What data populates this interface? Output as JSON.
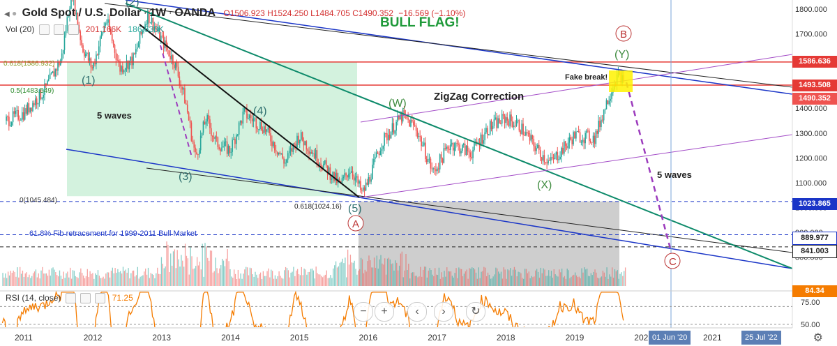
{
  "header": {
    "symbol": "Gold Spot / U.S. Dollar",
    "interval": "1W",
    "source": "OANDA",
    "open": "O1506.923",
    "high": "H1524.250",
    "low": "L1484.705",
    "close": "C1490.352",
    "change": "−16.569 (−1.10%)",
    "vol_label": "Vol (20)",
    "vol_value1": "201.166K",
    "vol_value2": "186.633K",
    "rsi_label": "RSI (14, close)",
    "rsi_value": "71.25"
  },
  "annotations": {
    "bull_flag": "BULL FLAG!",
    "zigzag": "ZigZag Correction",
    "five_waves_left": "5 waves",
    "five_waves_right": "5 waves",
    "fake_break": "Fake break!",
    "fib_note": "61.8% Fib retracement for 1999-2011 Bull Market",
    "fib_0618_top": "0.618(1586.932)",
    "fib_05": "0.5(1483.549)",
    "fib_0": "0(1045.484)",
    "fib_0618_low": "0.618(1024.16)",
    "wave_1": "(1)",
    "wave_2": "(2)",
    "wave_3": "(3)",
    "wave_4": "(4)",
    "wave_5": "(5)",
    "wave_W": "(W)",
    "wave_X": "(X)",
    "wave_Y": "(Y)",
    "wave_A": "A",
    "wave_B": "B",
    "wave_C": "C"
  },
  "price_tags": {
    "p1586": "1586.636",
    "p1493": "1493.508",
    "p1490": "1490.352",
    "p1023": "1023.865",
    "p889": "889.977",
    "p841": "841.003",
    "rsi": "84.34"
  },
  "date_tags": {
    "d1": "01 Jun '20",
    "d2": "25 Jul '22"
  },
  "colors": {
    "up": "#26a69a",
    "down": "#ef5350",
    "red_line": "#e53935",
    "blue_line": "#1a35c7",
    "green_line": "#0d8a6a",
    "purple": "#9c3bbd",
    "rsi": "#f57c00",
    "green_box": "#c8efd6",
    "gray_box": "#bdbdbd"
  },
  "chart_data": {
    "type": "candlestick",
    "y_axis_ticks": [
      "1800.000",
      "1700.000",
      "1600.000",
      "1500.000",
      "1400.000",
      "1300.000",
      "1200.000",
      "1100.000",
      "1000.000",
      "900.000",
      "800.000"
    ],
    "x_axis_ticks": [
      "2011",
      "2012",
      "2013",
      "2014",
      "2015",
      "2016",
      "2017",
      "2018",
      "2019",
      "202",
      "2021"
    ],
    "rsi_ticks": [
      "75.00",
      "50.00"
    ],
    "ylim": [
      760,
      1830
    ],
    "price_path": [
      [
        2010.75,
        1350
      ],
      [
        2011.0,
        1380
      ],
      [
        2011.3,
        1470
      ],
      [
        2011.55,
        1600
      ],
      [
        2011.7,
        1880
      ],
      [
        2011.85,
        1650
      ],
      [
        2012.0,
        1560
      ],
      [
        2012.2,
        1760
      ],
      [
        2012.4,
        1560
      ],
      [
        2012.6,
        1600
      ],
      [
        2012.8,
        1780
      ],
      [
        2013.0,
        1680
      ],
      [
        2013.2,
        1580
      ],
      [
        2013.35,
        1430
      ],
      [
        2013.5,
        1200
      ],
      [
        2013.65,
        1360
      ],
      [
        2013.8,
        1260
      ],
      [
        2014.0,
        1230
      ],
      [
        2014.2,
        1380
      ],
      [
        2014.5,
        1320
      ],
      [
        2014.8,
        1180
      ],
      [
        2015.0,
        1290
      ],
      [
        2015.3,
        1190
      ],
      [
        2015.6,
        1090
      ],
      [
        2015.75,
        1160
      ],
      [
        2015.92,
        1055
      ],
      [
        2016.0,
        1100
      ],
      [
        2016.2,
        1260
      ],
      [
        2016.5,
        1370
      ],
      [
        2016.7,
        1320
      ],
      [
        2016.95,
        1140
      ],
      [
        2017.2,
        1260
      ],
      [
        2017.5,
        1220
      ],
      [
        2017.75,
        1320
      ],
      [
        2018.0,
        1360
      ],
      [
        2018.2,
        1330
      ],
      [
        2018.5,
        1220
      ],
      [
        2018.65,
        1180
      ],
      [
        2018.85,
        1240
      ],
      [
        2019.0,
        1290
      ],
      [
        2019.3,
        1280
      ],
      [
        2019.45,
        1410
      ],
      [
        2019.6,
        1520
      ],
      [
        2019.68,
        1530
      ],
      [
        2019.72,
        1490
      ]
    ],
    "horizontal_levels": [
      1586.636,
      1493.508,
      1023.865,
      889.977,
      841.003
    ]
  }
}
